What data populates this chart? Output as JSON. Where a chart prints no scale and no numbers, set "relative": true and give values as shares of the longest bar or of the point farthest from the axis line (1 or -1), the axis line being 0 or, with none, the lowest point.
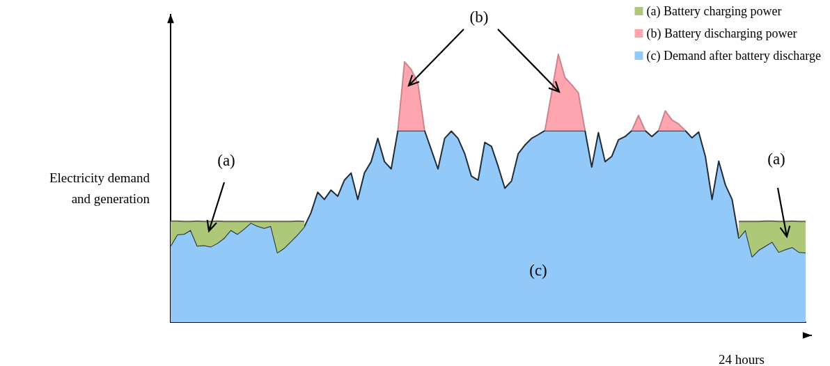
{
  "chart_data": {
    "type": "area",
    "relative": true,
    "stacked": true,
    "xlabel": "24 hours",
    "ylabel": "Electricity demand\nand generation",
    "categories": [
      null,
      null,
      null,
      null,
      null,
      null,
      null,
      null,
      null,
      null,
      null,
      null,
      null,
      null,
      null,
      null,
      null,
      null,
      null,
      null,
      null,
      null,
      null,
      null,
      null,
      null,
      null,
      null,
      null,
      null,
      null,
      null,
      null,
      null,
      null,
      null,
      null,
      null,
      null,
      null,
      null,
      null,
      null,
      null,
      null,
      null,
      null,
      null,
      null,
      null,
      null,
      null,
      null,
      null,
      null,
      null,
      null,
      null,
      null,
      null,
      null,
      null,
      null,
      null,
      null,
      null,
      null,
      null,
      null,
      null,
      null,
      null,
      null,
      null,
      null,
      null,
      null,
      null,
      null,
      null,
      null,
      null,
      null,
      null,
      null,
      null,
      null,
      null,
      null,
      null,
      null,
      null,
      null,
      null,
      null,
      null
    ],
    "series": [
      {
        "name": "(c) Demand after battery discharge",
        "color": "#92c9f9",
        "values": [
          0.285,
          0.327,
          0.329,
          0.344,
          0.285,
          0.287,
          0.282,
          0.295,
          0.314,
          0.344,
          0.329,
          0.349,
          0.371,
          0.359,
          0.351,
          0.359,
          0.26,
          0.277,
          0.302,
          0.327,
          0.356,
          0.408,
          0.485,
          0.458,
          0.493,
          0.47,
          0.53,
          0.557,
          0.458,
          0.557,
          0.599,
          0.686,
          0.599,
          0.572,
          0.715,
          0.715,
          0.715,
          0.715,
          0.715,
          0.644,
          0.572,
          0.686,
          0.713,
          0.686,
          0.629,
          0.545,
          0.53,
          0.671,
          0.656,
          0.582,
          0.5,
          0.527,
          0.629,
          0.661,
          0.686,
          0.7,
          0.715,
          0.715,
          0.715,
          0.715,
          0.715,
          0.715,
          0.715,
          0.579,
          0.708,
          0.599,
          0.619,
          0.681,
          0.693,
          0.715,
          0.715,
          0.715,
          0.693,
          0.715,
          0.715,
          0.715,
          0.715,
          0.715,
          0.688,
          0.71,
          0.619,
          0.458,
          0.601,
          0.512,
          0.458,
          0.314,
          0.344,
          0.245,
          0.27,
          0.285,
          0.3,
          0.262,
          0.272,
          0.28,
          0.262,
          0.26
        ]
      },
      {
        "name": "(a) Battery charging power",
        "color": "#adc878",
        "values": [
          0.092,
          0.05,
          0.047,
          0.032,
          0.092,
          0.089,
          0.094,
          0.082,
          0.062,
          0.032,
          0.047,
          0.027,
          0.005,
          0.017,
          0.025,
          0.017,
          0.116,
          0.099,
          0.074,
          0.05,
          0.02,
          null,
          null,
          null,
          null,
          null,
          null,
          null,
          null,
          null,
          null,
          null,
          null,
          null,
          null,
          null,
          null,
          null,
          null,
          null,
          null,
          null,
          null,
          null,
          null,
          null,
          null,
          null,
          null,
          null,
          null,
          null,
          null,
          null,
          null,
          null,
          null,
          null,
          null,
          null,
          null,
          null,
          null,
          null,
          null,
          null,
          null,
          null,
          null,
          null,
          null,
          null,
          null,
          null,
          null,
          null,
          null,
          null,
          null,
          null,
          null,
          null,
          null,
          null,
          null,
          0.062,
          0.032,
          0.131,
          0.106,
          0.092,
          0.077,
          0.114,
          0.104,
          0.097,
          0.114,
          0.116
        ]
      },
      {
        "name": "(b) Battery discharging power",
        "color": "#ffa5b0",
        "values": [
          null,
          null,
          null,
          null,
          null,
          null,
          null,
          null,
          null,
          null,
          null,
          null,
          null,
          null,
          null,
          null,
          null,
          null,
          null,
          null,
          null,
          null,
          null,
          null,
          null,
          null,
          null,
          null,
          null,
          null,
          null,
          null,
          null,
          null,
          0,
          0.257,
          0.228,
          0.176,
          0,
          null,
          null,
          null,
          null,
          null,
          null,
          null,
          null,
          null,
          null,
          null,
          null,
          null,
          null,
          null,
          null,
          null,
          0,
          0.142,
          0.285,
          0.198,
          0.171,
          0.141,
          0,
          null,
          null,
          null,
          null,
          null,
          null,
          0,
          0.057,
          0,
          null,
          0,
          0.074,
          0.04,
          0.025,
          0,
          null,
          null,
          null,
          null,
          null,
          null,
          null,
          null,
          null,
          null,
          null,
          null,
          null,
          null,
          null,
          null,
          null,
          null
        ]
      }
    ],
    "annotations": [
      "(a)",
      "(b)",
      "(c)",
      "(a)"
    ],
    "legend": "top right",
    "grid": false
  }
}
